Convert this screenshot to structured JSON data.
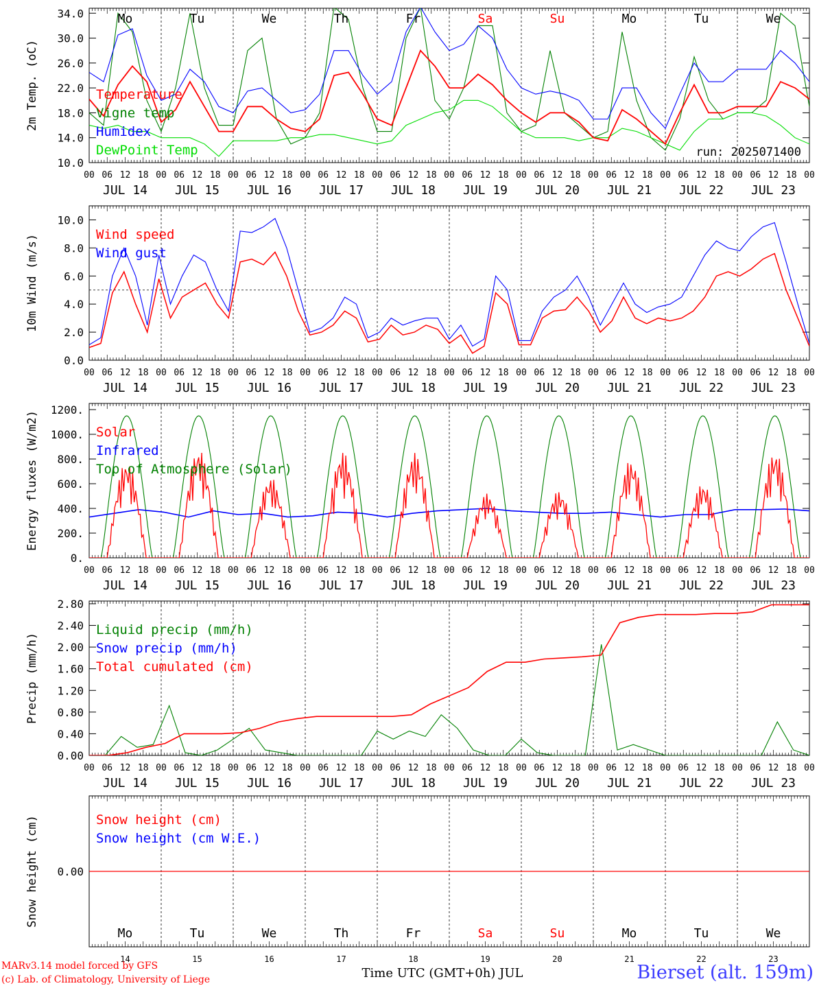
{
  "footer": {
    "model": "MARv3.14 model forced by GFS",
    "copyright": "(c) Lab. of Climatology, University of Liege",
    "station": "Bierset (alt. 159m)",
    "xlabel": "Time UTC (GMT+0h) JUL"
  },
  "colors": {
    "red": "#ff0000",
    "green": "#008000",
    "blue": "#0000ff",
    "lime": "#00dd00",
    "black": "#000000"
  },
  "common_axis": {
    "hour_ticks": [
      "00",
      "06",
      "12",
      "18"
    ],
    "final_hour_label": "00",
    "date_labels": [
      "JUL 14",
      "JUL 15",
      "JUL 16",
      "JUL 17",
      "JUL 18",
      "JUL 19",
      "JUL 20",
      "JUL 21",
      "JUL 22",
      "JUL 23"
    ],
    "weekdays": [
      "Mo",
      "Tu",
      "We",
      "Th",
      "Fr",
      "Sa",
      "Su",
      "Mo",
      "Tu",
      "We"
    ],
    "weekend_days": [
      5,
      6
    ],
    "day_numbers": [
      "14",
      "15",
      "16",
      "17",
      "18",
      "19",
      "20",
      "21",
      "22",
      "23"
    ]
  },
  "chart_data": [
    {
      "type": "line",
      "ylabel": "2m Temp. (oC)",
      "ylim": [
        10,
        34.8
      ],
      "yticks": [
        "10.0",
        "14.0",
        "18.0",
        "22.0",
        "26.0",
        "30.0",
        "34.0"
      ],
      "run_label": "run: 2025071400",
      "series": [
        {
          "name": "Temperature",
          "color": "red",
          "values": [
            20.2,
            17.5,
            22.5,
            25.5,
            23,
            16.5,
            18.5,
            23,
            19,
            15,
            15,
            19,
            19,
            17,
            15.5,
            15,
            17,
            24,
            24.5,
            21,
            17,
            16,
            22,
            28,
            25.5,
            22,
            22,
            24.2,
            22.5,
            20,
            18,
            16.5,
            18,
            18,
            16.5,
            14,
            13.5,
            18.5,
            17,
            15,
            13,
            18,
            22.5,
            18,
            18,
            19,
            19,
            19,
            23,
            22,
            20.2
          ]
        },
        {
          "name": "Vigne temp",
          "color": "green",
          "values": [
            18,
            16,
            34,
            31,
            20,
            15,
            22,
            34,
            22,
            16,
            16,
            28,
            30,
            17,
            13,
            14,
            18,
            35,
            33,
            22,
            15,
            15,
            30,
            35,
            20,
            17,
            22,
            32,
            32,
            18,
            15,
            16,
            28,
            18,
            16,
            14,
            15,
            31,
            20,
            14,
            12,
            17,
            27,
            20,
            17,
            18,
            18,
            20,
            34,
            32,
            19
          ]
        },
        {
          "name": "Humidex",
          "color": "blue",
          "values": [
            24.5,
            23,
            30.5,
            31.5,
            24,
            20,
            21,
            25,
            23,
            19,
            18,
            21.5,
            22,
            20,
            18,
            18.5,
            21,
            28,
            28,
            24,
            21,
            23,
            31,
            35,
            31,
            28,
            29,
            32,
            30,
            25,
            22,
            21,
            21.5,
            21,
            20,
            17,
            17,
            22,
            22,
            18,
            15.5,
            21,
            26,
            23,
            23,
            25,
            25,
            25,
            28,
            26,
            23
          ]
        },
        {
          "name": "DewPoint Temp",
          "color": "lime",
          "values": [
            16,
            15.5,
            16,
            15,
            15,
            14,
            14,
            14,
            13,
            11,
            13.5,
            13.5,
            13.5,
            13.5,
            14,
            14,
            14.5,
            14.5,
            14,
            13.5,
            13,
            13.5,
            16,
            17,
            18,
            18.5,
            20,
            20,
            19,
            17,
            15,
            14,
            14,
            14,
            13.5,
            14,
            14,
            15.5,
            15,
            14,
            13,
            12,
            15,
            17,
            17,
            18,
            18,
            17.5,
            16,
            14,
            13
          ]
        }
      ]
    },
    {
      "type": "line",
      "ylabel": "10m Wind (m/s)",
      "ylim": [
        0,
        11
      ],
      "yticks": [
        "0.0",
        "2.0",
        "4.0",
        "6.0",
        "8.0",
        "10.0"
      ],
      "reference_line": 5,
      "series": [
        {
          "name": "Wind speed",
          "color": "red",
          "values": [
            0.9,
            1.2,
            4.8,
            6.3,
            4,
            2,
            5.8,
            3,
            4.5,
            5,
            5.5,
            4,
            3,
            7,
            7.2,
            6.8,
            7.7,
            6,
            3.5,
            1.8,
            2,
            2.5,
            3.5,
            3,
            1.3,
            1.5,
            2.5,
            1.8,
            2,
            2.5,
            2.2,
            1.2,
            1.8,
            0.5,
            1,
            4.8,
            4,
            1.1,
            1.1,
            3,
            3.5,
            3.6,
            4.5,
            3.5,
            2,
            2.8,
            4.5,
            3,
            2.6,
            3,
            2.8,
            3,
            3.5,
            4.5,
            6,
            6.3,
            6,
            6.5,
            7.2,
            7.6,
            5,
            3,
            1
          ]
        },
        {
          "name": "Wind gust",
          "color": "blue",
          "values": [
            1.1,
            1.6,
            6,
            8,
            6,
            2.5,
            7.5,
            4,
            6,
            7.5,
            7,
            5,
            3.5,
            9.2,
            9.1,
            9.5,
            10.1,
            8,
            5,
            2,
            2.3,
            3,
            4.5,
            4,
            1.6,
            2,
            3,
            2.5,
            2.8,
            3,
            3,
            1.5,
            2.5,
            1,
            1.5,
            6,
            5,
            1.4,
            1.4,
            3.5,
            4.5,
            5,
            6,
            4.5,
            2.5,
            4,
            5.5,
            4,
            3.4,
            3.8,
            4,
            4.5,
            6,
            7.5,
            8.5,
            8,
            7.8,
            8.8,
            9.5,
            9.8,
            7,
            4,
            1.2
          ]
        }
      ]
    },
    {
      "type": "line",
      "ylabel": "Energy fluxes (W/m2)",
      "ylim": [
        0,
        1250
      ],
      "yticks": [
        "0.",
        "200.",
        "400.",
        "600.",
        "800.",
        "1000.",
        "1200."
      ],
      "solar_day_peaks": [
        780,
        880,
        650,
        860,
        850,
        520,
        540,
        790,
        600,
        860
      ],
      "infrared_values": [
        330,
        360,
        390,
        370,
        330,
        380,
        350,
        360,
        330,
        340,
        370,
        360,
        330,
        360,
        380,
        390,
        400,
        380,
        370,
        360,
        360,
        370,
        350,
        330,
        350,
        350,
        390,
        390,
        395,
        380
      ],
      "series": [
        {
          "name": "Solar",
          "color": "red"
        },
        {
          "name": "Infrared",
          "color": "blue"
        },
        {
          "name": "Top of Atmosphere (Solar)",
          "color": "green",
          "peak": 1150
        }
      ]
    },
    {
      "type": "line",
      "ylabel": "Precip (mm/h)",
      "ylim": [
        0,
        2.85
      ],
      "yticks": [
        "0.00",
        "0.40",
        "0.80",
        "1.20",
        "1.60",
        "2.00",
        "2.40",
        "2.80"
      ],
      "series": [
        {
          "name": "Liquid precip (mm/h)",
          "color": "green",
          "values": [
            0,
            0,
            0.35,
            0.15,
            0.2,
            0.92,
            0.05,
            0,
            0.1,
            0.3,
            0.5,
            0.1,
            0.05,
            0,
            0,
            0,
            0,
            0,
            0.45,
            0.3,
            0.45,
            0.35,
            0.75,
            0.5,
            0.1,
            0,
            0,
            0.3,
            0.05,
            0,
            0,
            0,
            2.05,
            0.1,
            0.2,
            0.1,
            0,
            0,
            0,
            0,
            0,
            0,
            0,
            0.62,
            0.1,
            0
          ]
        },
        {
          "name": "Snow precip (mm/h)",
          "color": "blue",
          "values": []
        },
        {
          "name": "Total cumulated (cm)",
          "color": "red",
          "values": [
            0,
            0,
            0.05,
            0.15,
            0.22,
            0.4,
            0.4,
            0.4,
            0.42,
            0.5,
            0.62,
            0.68,
            0.72,
            0.72,
            0.72,
            0.72,
            0.72,
            0.75,
            0.95,
            1.1,
            1.25,
            1.55,
            1.72,
            1.72,
            1.78,
            1.8,
            1.82,
            1.85,
            2.45,
            2.55,
            2.6,
            2.6,
            2.6,
            2.62,
            2.62,
            2.65,
            2.78,
            2.78,
            2.78
          ]
        }
      ]
    },
    {
      "type": "line",
      "ylabel": "Snow height (cm)",
      "ylim": [
        -1,
        1
      ],
      "yticks": [
        "0.00"
      ],
      "series": [
        {
          "name": "Snow height (cm)",
          "color": "red",
          "values": [
            0,
            0
          ]
        },
        {
          "name": "Snow height (cm W.E.)",
          "color": "blue",
          "values": []
        }
      ]
    }
  ]
}
